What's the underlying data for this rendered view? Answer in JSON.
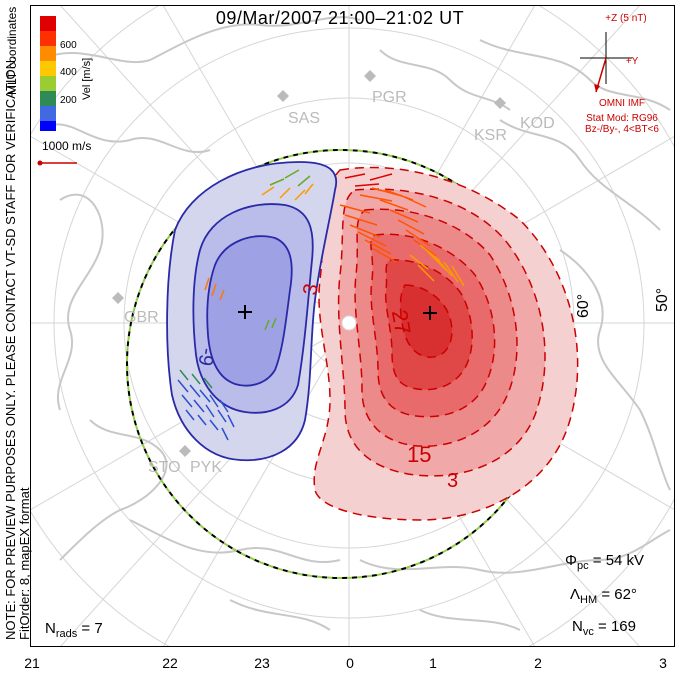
{
  "title": "09/Mar/2007  21:00–21:02  UT",
  "colorbar": {
    "label": "Vel [m/s]",
    "ticks": [
      "600",
      "400",
      "200"
    ],
    "colors": [
      "#ff0000",
      "#ff6a00",
      "#ffc800",
      "#9acd32",
      "#2e8b57",
      "#4169e1",
      "#0000ff"
    ]
  },
  "mlt_label": "MLT coordinates",
  "scale_vector": "1000 m/s",
  "notes": {
    "line1": "NOTE: FOR PREVIEW PURPOSES ONLY. PLEASE CONTACT VT-SD STAFF FOR VERIFICATION.",
    "line2": "FitOrder: 8, mapEX format"
  },
  "imf": {
    "z_label": "+Z (5 nT)",
    "y_label": "+Y",
    "omni": "OMNI IMF",
    "stat_mod": "Stat Mod: RG96",
    "condition": "Bz-/By-, 4<BT<6"
  },
  "stations": [
    "SAS",
    "PGR",
    "KSR",
    "KOD",
    "GBR",
    "STO",
    "PYK"
  ],
  "latitudes": [
    "60°",
    "50°"
  ],
  "contour_labels": [
    "3",
    "-9",
    "27",
    "15",
    "3"
  ],
  "stats": {
    "phi_pc_label": "Φ",
    "phi_pc_sub": "pc",
    "phi_pc_value": "= 54 kV",
    "lambda_label": "Λ",
    "lambda_sub": "HM",
    "lambda_value": "= 62°",
    "nvc_label": "N",
    "nvc_sub": "vc",
    "nvc_value": "= 169",
    "nrads_label": "N",
    "nrads_sub": "rads",
    "nrads_value": "= 7"
  },
  "mlt_hours": [
    "21",
    "22",
    "23",
    "0",
    "1",
    "2",
    "3"
  ],
  "colors": {
    "positive": "#e33232",
    "negative": "#2222bb",
    "continent": "#c8c8c8",
    "grid": "#d6d6d6"
  }
}
